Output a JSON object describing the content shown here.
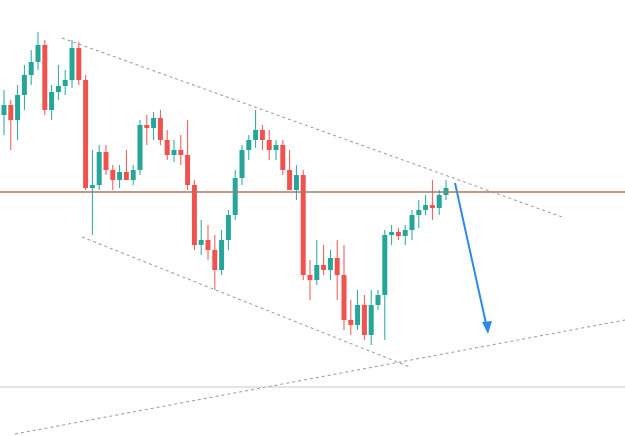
{
  "chart_data": {
    "type": "candlestick",
    "ylim": [
      0,
      436
    ],
    "up_color": "#26a69a",
    "down_color": "#ef5350",
    "open": [
      321,
      331,
      316,
      341,
      361,
      374,
      391,
      326,
      344,
      350,
      356,
      388,
      356,
      248,
      251,
      284,
      266,
      256,
      264,
      256,
      266,
      311,
      308,
      318,
      296,
      281,
      286,
      281,
      251,
      191,
      196,
      186,
      166,
      196,
      221,
      258,
      286,
      296,
      306,
      296,
      286,
      291,
      266,
      246,
      261,
      161,
      156,
      171,
      166,
      178,
      161,
      116,
      111,
      131,
      101,
      131,
      141,
      201,
      204,
      200,
      206,
      221,
      226,
      231,
      228,
      241
    ],
    "high": [
      346,
      336,
      351,
      371,
      386,
      404,
      396,
      351,
      371,
      366,
      396,
      394,
      361,
      286,
      291,
      291,
      271,
      271,
      286,
      271,
      316,
      321,
      324,
      326,
      306,
      296,
      301,
      316,
      256,
      216,
      211,
      201,
      206,
      226,
      266,
      291,
      301,
      326,
      311,
      306,
      296,
      296,
      286,
      271,
      266,
      176,
      196,
      191,
      186,
      196,
      191,
      136,
      146,
      141,
      146,
      146,
      206,
      211,
      208,
      211,
      226,
      236,
      241,
      256,
      246,
      256
    ],
    "low": [
      301,
      286,
      296,
      326,
      351,
      366,
      321,
      316,
      336,
      341,
      348,
      351,
      246,
      201,
      246,
      261,
      246,
      248,
      256,
      251,
      261,
      291,
      296,
      291,
      276,
      274,
      271,
      246,
      186,
      181,
      176,
      146,
      161,
      186,
      216,
      251,
      276,
      288,
      286,
      276,
      276,
      261,
      246,
      236,
      156,
      136,
      151,
      161,
      156,
      136,
      106,
      101,
      106,
      96,
      91,
      126,
      96,
      191,
      196,
      191,
      196,
      208,
      221,
      216,
      221,
      236
    ],
    "close": [
      331,
      316,
      341,
      361,
      374,
      391,
      326,
      344,
      350,
      356,
      388,
      356,
      248,
      251,
      284,
      266,
      256,
      264,
      256,
      266,
      311,
      308,
      318,
      296,
      281,
      286,
      281,
      251,
      191,
      196,
      186,
      166,
      196,
      221,
      258,
      286,
      296,
      306,
      296,
      286,
      291,
      266,
      246,
      261,
      161,
      156,
      171,
      166,
      178,
      161,
      116,
      111,
      131,
      101,
      131,
      141,
      201,
      204,
      200,
      206,
      221,
      226,
      231,
      228,
      241,
      248
    ],
    "levels": [
      {
        "value": 244,
        "color": "#a0786a"
      },
      {
        "value": 49,
        "color": "#c8c8c8"
      }
    ]
  }
}
